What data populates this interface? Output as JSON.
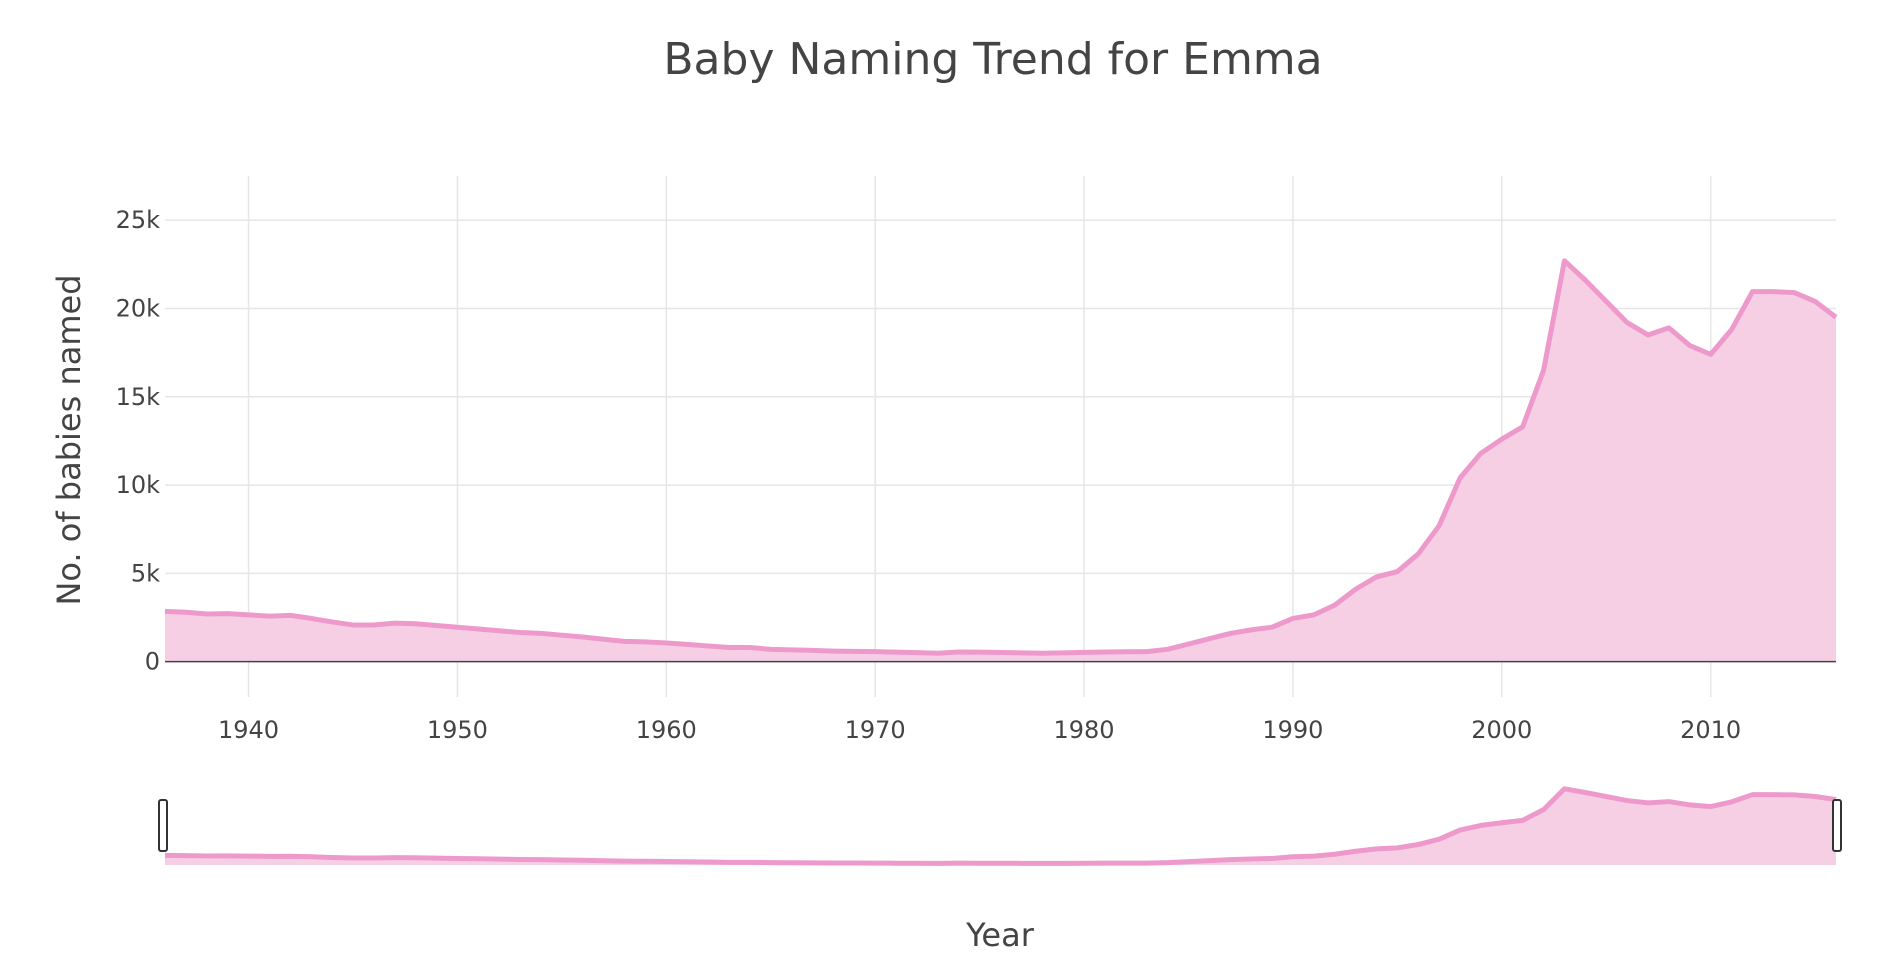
{
  "chart_data": {
    "type": "area",
    "title": "Baby Naming Trend for Emma",
    "xlabel": "Year",
    "ylabel": "No. of babies named",
    "xlim": [
      1936,
      2016
    ],
    "ylim": [
      -2000,
      27500
    ],
    "x_ticks": [
      1940,
      1950,
      1960,
      1970,
      1980,
      1990,
      2000,
      2010
    ],
    "y_ticks": [
      {
        "value": 0,
        "label": "0"
      },
      {
        "value": 5000,
        "label": "5k"
      },
      {
        "value": 10000,
        "label": "10k"
      },
      {
        "value": 15000,
        "label": "15k"
      },
      {
        "value": 20000,
        "label": "20k"
      },
      {
        "value": 25000,
        "label": "25k"
      }
    ],
    "grid": true,
    "legend": "none",
    "rangeslider": true,
    "line_color": "#ee99cc",
    "fill_color": "#f7cfe5",
    "series": [
      {
        "x": [
          1936,
          1937,
          1938,
          1939,
          1940,
          1941,
          1942,
          1943,
          1944,
          1945,
          1946,
          1947,
          1948,
          1949,
          1950,
          1951,
          1952,
          1953,
          1954,
          1955,
          1956,
          1957,
          1958,
          1959,
          1960,
          1961,
          1962,
          1963,
          1964,
          1965,
          1966,
          1967,
          1968,
          1969,
          1970,
          1971,
          1972,
          1973,
          1974,
          1975,
          1976,
          1977,
          1978,
          1979,
          1980,
          1981,
          1982,
          1983,
          1984,
          1985,
          1986,
          1987,
          1988,
          1989,
          1990,
          1991,
          1992,
          1993,
          1994,
          1995,
          1996,
          1997,
          1998,
          1999,
          2000,
          2001,
          2002,
          2003,
          2004,
          2005,
          2006,
          2007,
          2008,
          2009,
          2010,
          2011,
          2012,
          2013,
          2014,
          2015,
          2016
        ],
        "y": [
          2850,
          2800,
          2700,
          2720,
          2650,
          2580,
          2620,
          2450,
          2250,
          2080,
          2080,
          2180,
          2150,
          2050,
          1950,
          1850,
          1750,
          1650,
          1600,
          1500,
          1400,
          1270,
          1150,
          1120,
          1060,
          980,
          890,
          800,
          800,
          700,
          670,
          640,
          600,
          580,
          570,
          540,
          510,
          480,
          550,
          540,
          520,
          500,
          480,
          500,
          530,
          550,
          560,
          570,
          700,
          1000,
          1300,
          1600,
          1800,
          1950,
          2450,
          2650,
          3200,
          4100,
          4800,
          5100,
          6100,
          7700,
          10400,
          11800,
          12600,
          13300,
          16500,
          22700,
          21600,
          20400,
          19200,
          18500,
          18900,
          17900,
          17400,
          18800,
          20950,
          20950,
          20900,
          20400,
          19500
        ]
      }
    ]
  }
}
